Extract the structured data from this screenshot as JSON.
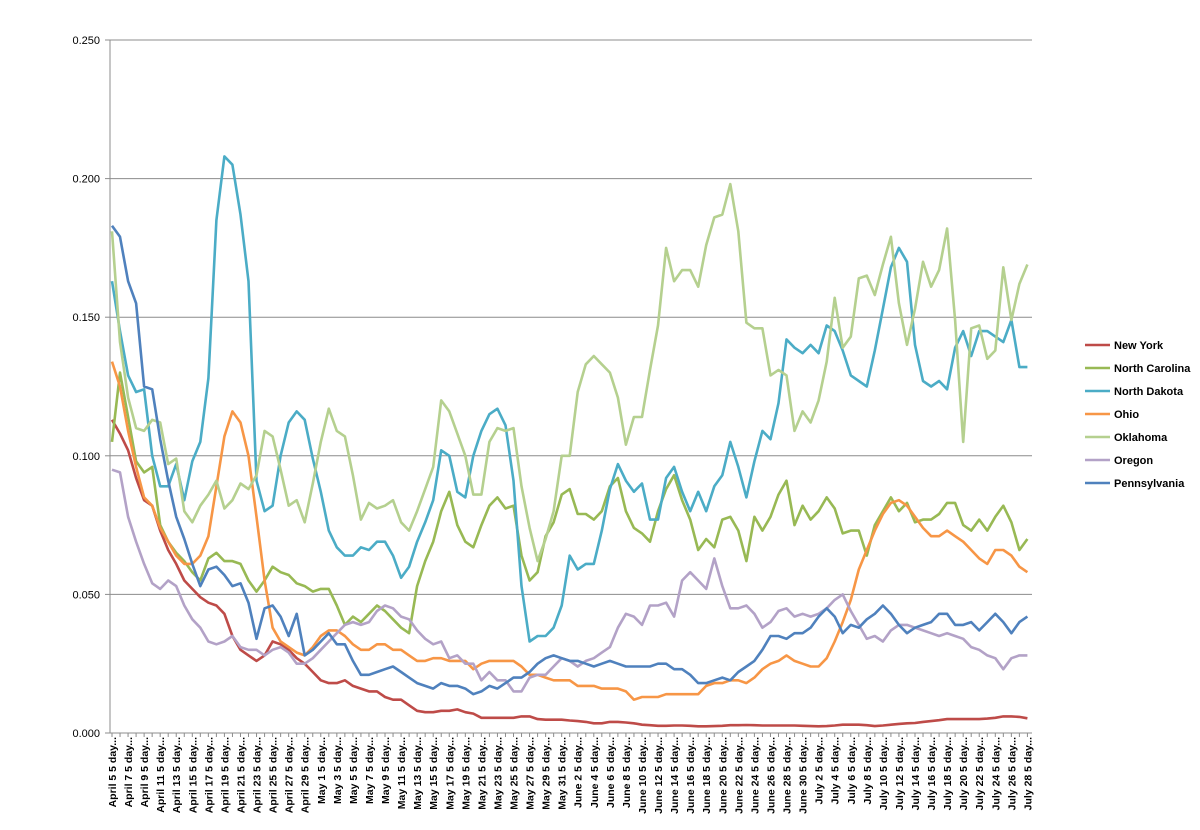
{
  "chart_data": {
    "type": "line",
    "title": "",
    "xlabel": "",
    "ylabel": "",
    "ylim": [
      0,
      0.25
    ],
    "y_ticks": [
      "0.000",
      "0.050",
      "0.100",
      "0.150",
      "0.200",
      "0.250"
    ],
    "grid": "horizontal",
    "legend_position": "right",
    "x_tick_labels": [
      "April 5 5 day...",
      "April 7 5 day...",
      "April 9 5 day...",
      "April 11 5 day...",
      "April 13 5 day...",
      "April 15 5 day...",
      "April 17 5 day...",
      "April 19 5 day...",
      "April 21 5 day...",
      "April 23 5 day...",
      "April 25 5 day...",
      "April 27 5 day...",
      "April 29 5 day...",
      "May 1 5 day...",
      "May 3 5 day...",
      "May 5 5 day...",
      "May 7 5 day...",
      "May 9 5 day...",
      "May 11 5 day...",
      "May 13 5 day...",
      "May 15 5 day...",
      "May 17 5 day...",
      "May 19 5 day...",
      "May 21 5 day...",
      "May 23 5 day...",
      "May 25 5 day...",
      "May 27 5 day...",
      "May 29 5 day...",
      "May 31 5 day...",
      "June 2 5 day...",
      "June 4 5 day...",
      "June 6 5 day...",
      "June 8 5 day...",
      "June 10 5 day...",
      "June 12 5 day...",
      "June 14 5 day...",
      "June 16 5 day...",
      "June 18 5 day...",
      "June 20 5 day...",
      "June 22 5 day...",
      "June 24 5 day...",
      "June 26 5 day...",
      "June 28 5 day...",
      "June 30 5 day...",
      "July 2 5 day...",
      "July 4 5 day...",
      "July 6 5 day...",
      "July 8 5 day...",
      "July 10 5 day...",
      "July 12 5 day...",
      "July 14 5 day...",
      "July 16 5 day...",
      "July 18 5 day...",
      "July 20 5 day...",
      "July 22 5 day...",
      "July 24 5 day...",
      "July 26 5 day...",
      "July 28 5 day..."
    ],
    "x_range": [
      "April 5",
      "July 28"
    ],
    "series": [
      {
        "name": "New York",
        "color": "#BE4B48",
        "values": [
          0.113,
          0.108,
          0.102,
          0.092,
          0.084,
          0.082,
          0.073,
          0.066,
          0.061,
          0.055,
          0.052,
          0.049,
          0.047,
          0.046,
          0.043,
          0.035,
          0.03,
          0.028,
          0.026,
          0.028,
          0.033,
          0.032,
          0.03,
          0.027,
          0.025,
          0.022,
          0.019,
          0.018,
          0.018,
          0.019,
          0.017,
          0.016,
          0.015,
          0.015,
          0.013,
          0.012,
          0.012,
          0.01,
          0.008,
          0.0075,
          0.0075,
          0.008,
          0.008,
          0.0085,
          0.0075,
          0.007,
          0.0055,
          0.0055,
          0.0055,
          0.0055,
          0.0055,
          0.006,
          0.006,
          0.005,
          0.0048,
          0.0048,
          0.0048,
          0.0045,
          0.0043,
          0.004,
          0.0035,
          0.0035,
          0.004,
          0.004,
          0.0038,
          0.0035,
          0.003,
          0.0028,
          0.0026,
          0.0026,
          0.0027,
          0.0027,
          0.0026,
          0.0024,
          0.0024,
          0.0025,
          0.0026,
          0.0028,
          0.0028,
          0.0029,
          0.0028,
          0.0027,
          0.0027,
          0.0027,
          0.0027,
          0.0027,
          0.0026,
          0.0025,
          0.0024,
          0.0025,
          0.0027,
          0.003,
          0.003,
          0.003,
          0.0028,
          0.0025,
          0.0027,
          0.003,
          0.0033,
          0.0035,
          0.0036,
          0.004,
          0.0043,
          0.0046,
          0.005,
          0.005,
          0.005,
          0.005,
          0.005,
          0.0052,
          0.0055,
          0.006,
          0.006,
          0.0058,
          0.0053
        ]
      },
      {
        "name": "North Carolina",
        "color": "#98B954",
        "values": [
          0.105,
          0.13,
          0.114,
          0.098,
          0.094,
          0.096,
          0.075,
          0.069,
          0.065,
          0.062,
          0.058,
          0.055,
          0.063,
          0.065,
          0.062,
          0.062,
          0.061,
          0.055,
          0.051,
          0.055,
          0.06,
          0.058,
          0.057,
          0.054,
          0.053,
          0.051,
          0.052,
          0.052,
          0.046,
          0.039,
          0.042,
          0.04,
          0.043,
          0.046,
          0.044,
          0.041,
          0.038,
          0.036,
          0.053,
          0.062,
          0.069,
          0.08,
          0.087,
          0.075,
          0.069,
          0.067,
          0.075,
          0.082,
          0.085,
          0.081,
          0.082,
          0.064,
          0.055,
          0.058,
          0.071,
          0.076,
          0.086,
          0.088,
          0.079,
          0.079,
          0.077,
          0.08,
          0.089,
          0.092,
          0.08,
          0.074,
          0.072,
          0.069,
          0.08,
          0.088,
          0.093,
          0.084,
          0.077,
          0.066,
          0.07,
          0.067,
          0.077,
          0.078,
          0.073,
          0.062,
          0.078,
          0.073,
          0.078,
          0.086,
          0.091,
          0.075,
          0.082,
          0.077,
          0.08,
          0.085,
          0.081,
          0.072,
          0.073,
          0.073,
          0.064,
          0.075,
          0.08,
          0.085,
          0.08,
          0.083,
          0.076,
          0.077,
          0.077,
          0.079,
          0.083,
          0.083,
          0.075,
          0.073,
          0.077,
          0.073,
          0.078,
          0.082,
          0.076,
          0.066,
          0.07
        ]
      },
      {
        "name": "North Dakota",
        "color": "#4BACC6",
        "values": [
          0.163,
          0.145,
          0.129,
          0.123,
          0.124,
          0.1,
          0.089,
          0.089,
          0.097,
          0.084,
          0.098,
          0.105,
          0.128,
          0.185,
          0.208,
          0.205,
          0.187,
          0.163,
          0.091,
          0.08,
          0.082,
          0.1,
          0.112,
          0.116,
          0.113,
          0.099,
          0.087,
          0.073,
          0.067,
          0.064,
          0.064,
          0.067,
          0.066,
          0.069,
          0.069,
          0.064,
          0.056,
          0.06,
          0.069,
          0.076,
          0.084,
          0.102,
          0.1,
          0.087,
          0.085,
          0.1,
          0.109,
          0.115,
          0.117,
          0.111,
          0.091,
          0.053,
          0.033,
          0.035,
          0.035,
          0.038,
          0.046,
          0.064,
          0.059,
          0.061,
          0.061,
          0.073,
          0.088,
          0.097,
          0.091,
          0.087,
          0.09,
          0.077,
          0.077,
          0.092,
          0.096,
          0.087,
          0.08,
          0.087,
          0.08,
          0.089,
          0.093,
          0.105,
          0.096,
          0.085,
          0.098,
          0.109,
          0.106,
          0.119,
          0.142,
          0.139,
          0.137,
          0.14,
          0.137,
          0.147,
          0.145,
          0.138,
          0.129,
          0.127,
          0.125,
          0.138,
          0.153,
          0.168,
          0.175,
          0.17,
          0.14,
          0.127,
          0.125,
          0.127,
          0.124,
          0.139,
          0.145,
          0.136,
          0.145,
          0.145,
          0.143,
          0.141,
          0.149,
          0.132,
          0.132
        ]
      },
      {
        "name": "Ohio",
        "color": "#F79646",
        "values": [
          0.134,
          0.125,
          0.109,
          0.096,
          0.085,
          0.082,
          0.074,
          0.069,
          0.064,
          0.061,
          0.061,
          0.064,
          0.071,
          0.089,
          0.107,
          0.116,
          0.112,
          0.1,
          0.078,
          0.055,
          0.038,
          0.033,
          0.031,
          0.029,
          0.028,
          0.031,
          0.035,
          0.037,
          0.037,
          0.035,
          0.032,
          0.03,
          0.03,
          0.032,
          0.032,
          0.03,
          0.03,
          0.028,
          0.026,
          0.026,
          0.027,
          0.027,
          0.026,
          0.026,
          0.026,
          0.023,
          0.025,
          0.026,
          0.026,
          0.026,
          0.026,
          0.024,
          0.021,
          0.021,
          0.02,
          0.019,
          0.019,
          0.019,
          0.017,
          0.017,
          0.017,
          0.016,
          0.016,
          0.016,
          0.015,
          0.012,
          0.013,
          0.013,
          0.013,
          0.014,
          0.014,
          0.014,
          0.014,
          0.014,
          0.017,
          0.018,
          0.018,
          0.019,
          0.019,
          0.018,
          0.02,
          0.023,
          0.025,
          0.026,
          0.028,
          0.026,
          0.025,
          0.024,
          0.024,
          0.027,
          0.033,
          0.04,
          0.048,
          0.059,
          0.066,
          0.073,
          0.079,
          0.083,
          0.084,
          0.082,
          0.078,
          0.074,
          0.071,
          0.071,
          0.073,
          0.071,
          0.069,
          0.066,
          0.063,
          0.061,
          0.066,
          0.066,
          0.064,
          0.06,
          0.058
        ]
      },
      {
        "name": "Oklahoma",
        "color": "#B5D08F",
        "values": [
          0.181,
          0.141,
          0.121,
          0.11,
          0.109,
          0.113,
          0.112,
          0.097,
          0.099,
          0.08,
          0.076,
          0.082,
          0.086,
          0.091,
          0.081,
          0.084,
          0.09,
          0.088,
          0.093,
          0.109,
          0.107,
          0.095,
          0.082,
          0.084,
          0.076,
          0.09,
          0.105,
          0.117,
          0.109,
          0.107,
          0.093,
          0.077,
          0.083,
          0.081,
          0.082,
          0.084,
          0.076,
          0.073,
          0.08,
          0.088,
          0.096,
          0.12,
          0.116,
          0.108,
          0.1,
          0.086,
          0.086,
          0.105,
          0.11,
          0.109,
          0.11,
          0.089,
          0.074,
          0.062,
          0.07,
          0.08,
          0.1,
          0.1,
          0.123,
          0.133,
          0.136,
          0.133,
          0.13,
          0.121,
          0.104,
          0.114,
          0.114,
          0.131,
          0.147,
          0.175,
          0.163,
          0.167,
          0.167,
          0.161,
          0.176,
          0.186,
          0.187,
          0.198,
          0.181,
          0.148,
          0.146,
          0.146,
          0.129,
          0.131,
          0.129,
          0.109,
          0.116,
          0.112,
          0.12,
          0.134,
          0.157,
          0.139,
          0.143,
          0.164,
          0.165,
          0.158,
          0.169,
          0.179,
          0.155,
          0.14,
          0.153,
          0.17,
          0.161,
          0.167,
          0.182,
          0.149,
          0.105,
          0.146,
          0.147,
          0.135,
          0.138,
          0.168,
          0.149,
          0.162,
          0.169
        ]
      },
      {
        "name": "Oregon",
        "color": "#B3A2C7",
        "values": [
          0.095,
          0.094,
          0.078,
          0.069,
          0.061,
          0.054,
          0.052,
          0.055,
          0.053,
          0.046,
          0.041,
          0.038,
          0.033,
          0.032,
          0.033,
          0.035,
          0.031,
          0.03,
          0.03,
          0.028,
          0.03,
          0.031,
          0.029,
          0.025,
          0.025,
          0.027,
          0.03,
          0.033,
          0.036,
          0.039,
          0.04,
          0.039,
          0.04,
          0.044,
          0.046,
          0.045,
          0.042,
          0.041,
          0.037,
          0.034,
          0.032,
          0.033,
          0.027,
          0.028,
          0.025,
          0.025,
          0.019,
          0.022,
          0.019,
          0.019,
          0.015,
          0.015,
          0.02,
          0.021,
          0.021,
          0.024,
          0.027,
          0.026,
          0.024,
          0.026,
          0.027,
          0.029,
          0.031,
          0.038,
          0.043,
          0.042,
          0.039,
          0.046,
          0.046,
          0.047,
          0.042,
          0.055,
          0.058,
          0.055,
          0.052,
          0.063,
          0.053,
          0.045,
          0.045,
          0.046,
          0.043,
          0.038,
          0.04,
          0.044,
          0.045,
          0.042,
          0.043,
          0.042,
          0.043,
          0.045,
          0.048,
          0.05,
          0.044,
          0.039,
          0.034,
          0.035,
          0.033,
          0.037,
          0.039,
          0.039,
          0.038,
          0.037,
          0.036,
          0.035,
          0.036,
          0.035,
          0.034,
          0.031,
          0.03,
          0.028,
          0.027,
          0.023,
          0.027,
          0.028,
          0.028
        ]
      },
      {
        "name": "Pennsylvania",
        "color": "#4F81BD",
        "values": [
          0.183,
          0.179,
          0.163,
          0.155,
          0.125,
          0.124,
          0.106,
          0.091,
          0.078,
          0.07,
          0.061,
          0.053,
          0.059,
          0.06,
          0.057,
          0.053,
          0.054,
          0.047,
          0.034,
          0.045,
          0.046,
          0.042,
          0.035,
          0.043,
          0.028,
          0.03,
          0.033,
          0.036,
          0.032,
          0.032,
          0.026,
          0.021,
          0.021,
          0.022,
          0.023,
          0.024,
          0.022,
          0.02,
          0.018,
          0.017,
          0.016,
          0.018,
          0.017,
          0.017,
          0.016,
          0.014,
          0.015,
          0.017,
          0.016,
          0.018,
          0.02,
          0.02,
          0.022,
          0.025,
          0.027,
          0.028,
          0.027,
          0.026,
          0.026,
          0.025,
          0.024,
          0.025,
          0.026,
          0.025,
          0.024,
          0.024,
          0.024,
          0.024,
          0.025,
          0.025,
          0.023,
          0.023,
          0.021,
          0.018,
          0.018,
          0.019,
          0.02,
          0.019,
          0.022,
          0.024,
          0.026,
          0.03,
          0.035,
          0.035,
          0.034,
          0.036,
          0.036,
          0.038,
          0.042,
          0.045,
          0.042,
          0.036,
          0.039,
          0.038,
          0.041,
          0.043,
          0.046,
          0.043,
          0.039,
          0.036,
          0.038,
          0.039,
          0.04,
          0.043,
          0.043,
          0.039,
          0.039,
          0.04,
          0.037,
          0.04,
          0.043,
          0.04,
          0.036,
          0.04,
          0.042
        ]
      }
    ]
  }
}
